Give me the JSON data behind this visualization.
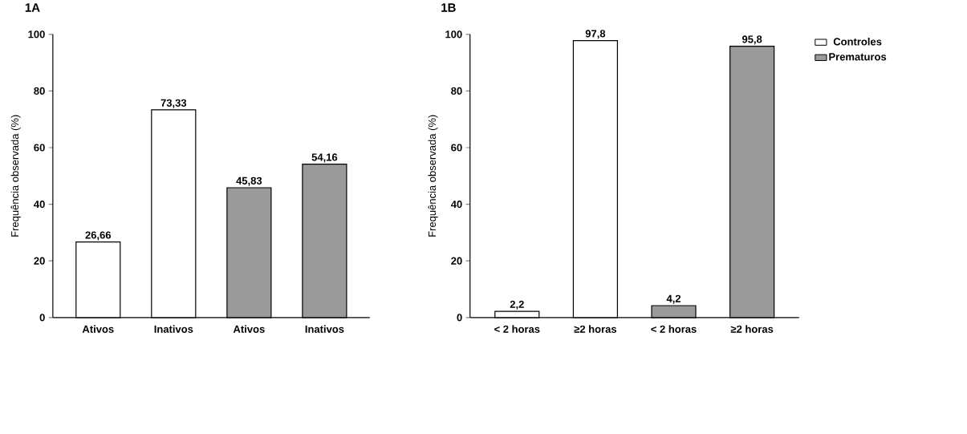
{
  "chart_data": [
    {
      "type": "bar",
      "title": "1A",
      "ylabel": "Frequência observada (%)",
      "categories": [
        "Ativos",
        "Inativos",
        "Ativos",
        "Inativos"
      ],
      "ylim": [
        0,
        100
      ],
      "yticks": [
        0,
        20,
        40,
        60,
        80,
        100
      ],
      "series": [
        {
          "color": "#ffffff",
          "values": [
            26.66,
            73.33,
            null,
            null
          ],
          "value_labels": [
            "26,66",
            "73,33",
            null,
            null
          ]
        },
        {
          "color": "#9a9a9a",
          "values": [
            null,
            null,
            45.83,
            54.16
          ],
          "value_labels": [
            null,
            null,
            "45,83",
            "54,16"
          ]
        }
      ]
    },
    {
      "type": "bar",
      "title": "1B",
      "ylabel": "Frequência observada (%)",
      "categories": [
        "< 2 horas",
        "≥2 horas",
        "< 2 horas",
        "≥2 horas"
      ],
      "ylim": [
        0,
        100
      ],
      "yticks": [
        0,
        20,
        40,
        60,
        80,
        100
      ],
      "legend": "right",
      "series": [
        {
          "name": "Controles",
          "color": "#ffffff",
          "values": [
            2.2,
            97.8,
            null,
            null
          ],
          "value_labels": [
            "2,2",
            "97,8",
            null,
            null
          ]
        },
        {
          "name": "Prematuros",
          "color": "#9a9a9a",
          "values": [
            null,
            null,
            4.2,
            95.8
          ],
          "value_labels": [
            null,
            null,
            "4,2",
            "95,8"
          ]
        }
      ]
    }
  ]
}
